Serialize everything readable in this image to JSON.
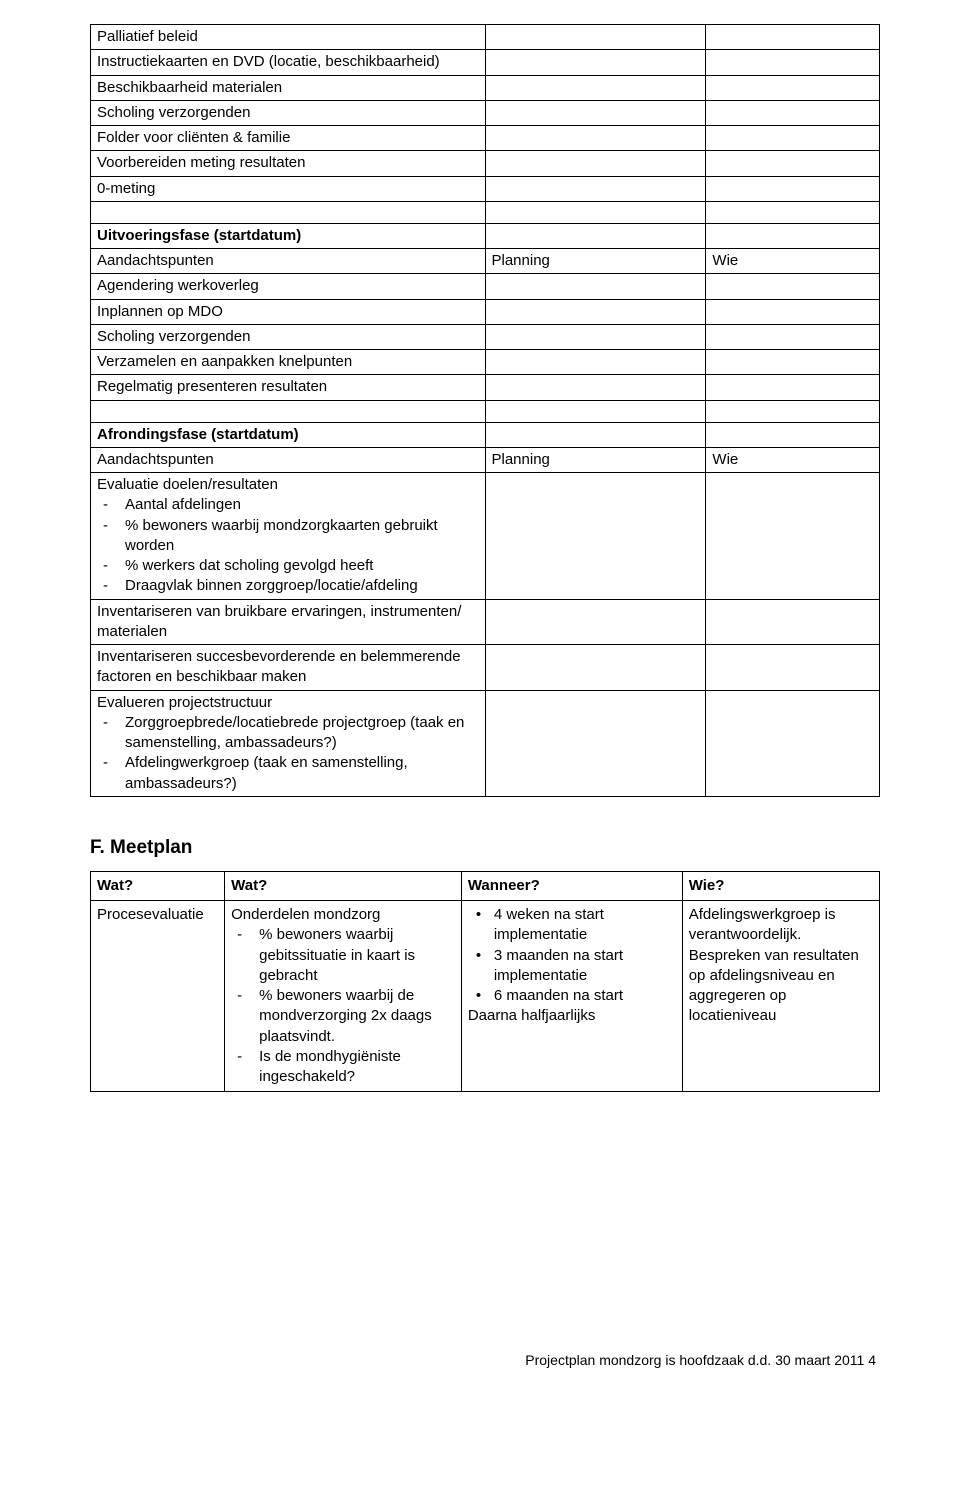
{
  "table1": {
    "rows": [
      "Palliatief beleid",
      "Instructiekaarten en DVD (locatie, beschikbaarheid)",
      "Beschikbaarheid materialen",
      "Scholing verzorgenden",
      "Folder voor cliënten & familie",
      "Voorbereiden meting resultaten",
      "0-meting"
    ],
    "section2_header": {
      "c1": "Uitvoeringsfase (startdatum)"
    },
    "section2_sub": {
      "c1": "Aandachtspunten",
      "c2": "Planning",
      "c3": "Wie"
    },
    "section2_rows": [
      "Agendering werkoverleg",
      "Inplannen op MDO",
      "Scholing verzorgenden",
      "Verzamelen en aanpakken knelpunten",
      "Regelmatig presenteren resultaten"
    ],
    "section3_header": {
      "c1": "Afrondingsfase (startdatum)"
    },
    "section3_sub": {
      "c1": "Aandachtspunten",
      "c2": "Planning",
      "c3": "Wie"
    },
    "section3_rows": {
      "r1_lead": "Evaluatie doelen/resultaten",
      "r1_items": [
        "Aantal afdelingen",
        "% bewoners waarbij mondzorgkaarten gebruikt worden",
        "% werkers dat scholing gevolgd heeft",
        "Draagvlak binnen zorggroep/locatie/afdeling"
      ],
      "r2": "Inventariseren van bruikbare ervaringen, instrumenten/ materialen",
      "r3": "Inventariseren succesbevorderende  en belemmerende factoren en beschikbaar maken",
      "r4_lead": "Evalueren projectstructuur",
      "r4_items": [
        "Zorggroepbrede/locatiebrede projectgroep (taak en samenstelling, ambassadeurs?)",
        "Afdelingwerkgroep (taak en samenstelling, ambassadeurs?)"
      ]
    }
  },
  "meetplan": {
    "heading": "F. Meetplan",
    "header": {
      "c1": "Wat?",
      "c2": "Wat?",
      "c3": "Wanneer?",
      "c4": "Wie?"
    },
    "row": {
      "c1": "Procesevaluatie",
      "c2_lead": "Onderdelen mondzorg",
      "c2_items": [
        "% bewoners waarbij gebitssituatie in kaart is gebracht",
        "% bewoners waarbij de mondverzorging 2x daags plaatsvindt.",
        "Is de mondhygiëniste ingeschakeld?"
      ],
      "c3_items": [
        "4 weken na start implementatie",
        "3 maanden na start implementatie",
        "6 maanden na start"
      ],
      "c3_tail": "Daarna halfjaarlijks",
      "c4": "Afdelingswerkgroep is verantwoordelijk. Bespreken van resultaten op afdelingsniveau en aggregeren op locatieniveau"
    }
  },
  "footer": "Projectplan mondzorg is hoofdzaak d.d. 30 maart 2011     4"
}
